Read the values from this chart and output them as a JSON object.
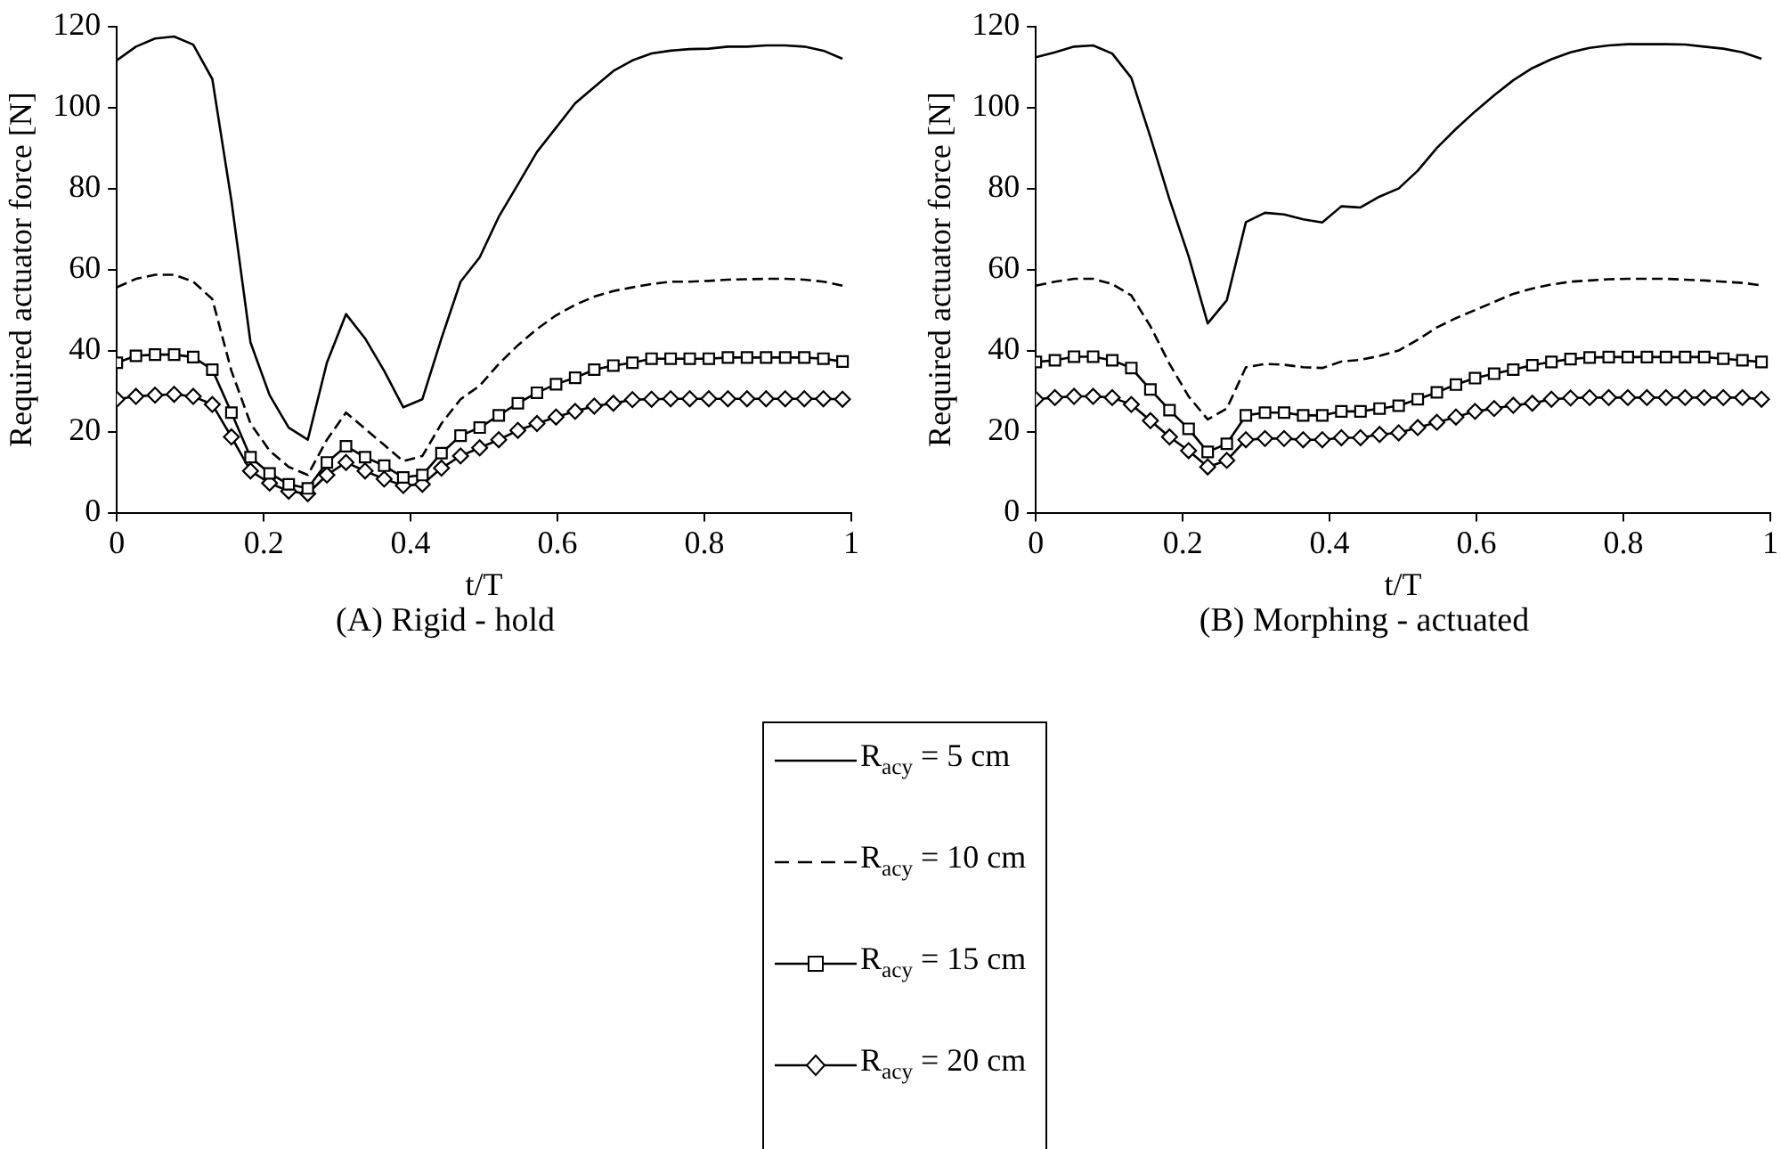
{
  "chart_data": [
    {
      "type": "line",
      "title": "(A) Rigid - hold",
      "xlabel": "t/T",
      "ylabel": "Required actuator force [N]",
      "xlim": [
        0,
        1
      ],
      "ylim": [
        0,
        120
      ],
      "xticks": [
        0,
        0.2,
        0.4,
        0.6,
        0.8,
        1
      ],
      "yticks": [
        0,
        20,
        40,
        60,
        80,
        100,
        120
      ],
      "grid": false,
      "legend": "bottom",
      "x": [
        0,
        0.026,
        0.052,
        0.078,
        0.104,
        0.13,
        0.156,
        0.182,
        0.208,
        0.234,
        0.26,
        0.286,
        0.312,
        0.338,
        0.364,
        0.39,
        0.416,
        0.442,
        0.468,
        0.494,
        0.52,
        0.546,
        0.572,
        0.598,
        0.624,
        0.65,
        0.676,
        0.702,
        0.728,
        0.754,
        0.78,
        0.806,
        0.832,
        0.858,
        0.884,
        0.91,
        0.936,
        0.962,
        0.988
      ],
      "series": [
        {
          "name": "R$_{ac}$$_{y}$ = 5 cm",
          "color": "#000000",
          "marker": "none",
          "line_style": "solid",
          "values": [
            111.6,
            115,
            117,
            117.5,
            115.5,
            107,
            77,
            42,
            29,
            21,
            18,
            37,
            49,
            43,
            35,
            26,
            28,
            43,
            57,
            63,
            73,
            81,
            89,
            95,
            101,
            105,
            109,
            111.6,
            113.3,
            114,
            114.4,
            114.5,
            115,
            115,
            115.3,
            115.3,
            115,
            114,
            112
          ]
        },
        {
          "name": "R$_{ac}$$_{y}$ = 10 cm",
          "color": "#000000",
          "marker": "none",
          "line_style": "dashed",
          "values": [
            55.6,
            57.7,
            58.7,
            58.7,
            57,
            52.7,
            35,
            22,
            15.3,
            11.3,
            9.3,
            18,
            24.7,
            20.7,
            16.7,
            12.7,
            14,
            22,
            28,
            31.3,
            36.7,
            41.3,
            45.3,
            48.7,
            51.3,
            53.3,
            54.7,
            55.6,
            56.4,
            57,
            57,
            57.2,
            57.5,
            57.6,
            57.7,
            57.7,
            57.5,
            57,
            56
          ]
        },
        {
          "name": "R$_{ac}$$_{y}$ = 15 cm",
          "color": "#000000",
          "marker": "square",
          "line_style": "solid",
          "values": [
            37,
            38.7,
            39,
            39,
            38.4,
            35.3,
            24.7,
            13.7,
            9.7,
            7,
            6,
            12.4,
            16.4,
            13.7,
            11.6,
            8.7,
            9.3,
            14.7,
            19,
            21,
            24,
            27,
            29.6,
            31.7,
            33.3,
            35.3,
            36.3,
            37,
            38,
            38,
            38,
            38,
            38.3,
            38.3,
            38.3,
            38.3,
            38.3,
            38,
            37.3
          ]
        },
        {
          "name": "R$_{ac}$$_{y}$ = 20 cm",
          "color": "#000000",
          "marker": "diamond",
          "line_style": "solid",
          "values": [
            28,
            28.7,
            29,
            29.2,
            28.7,
            26.7,
            18.7,
            10.3,
            7.3,
            5.3,
            4.7,
            9.3,
            12.4,
            10.3,
            8.3,
            6.7,
            7,
            11,
            14,
            16,
            18,
            20.3,
            22,
            23.6,
            25,
            26.3,
            27,
            27.9,
            28,
            28.1,
            28.1,
            28.1,
            28.1,
            28.1,
            28.1,
            28.1,
            28.1,
            28.1,
            28
          ]
        }
      ]
    },
    {
      "type": "line",
      "title": "(B) Morphing - actuated",
      "xlabel": "t/T",
      "ylabel": "Required actuator force [N]",
      "xlim": [
        0,
        1
      ],
      "ylim": [
        0,
        120
      ],
      "xticks": [
        0,
        0.2,
        0.4,
        0.6,
        0.8,
        1
      ],
      "yticks": [
        0,
        20,
        40,
        60,
        80,
        100,
        120
      ],
      "grid": false,
      "legend": "bottom",
      "x": [
        0,
        0.026,
        0.052,
        0.078,
        0.104,
        0.13,
        0.156,
        0.182,
        0.208,
        0.234,
        0.26,
        0.286,
        0.312,
        0.338,
        0.364,
        0.39,
        0.416,
        0.442,
        0.468,
        0.494,
        0.52,
        0.546,
        0.572,
        0.598,
        0.624,
        0.65,
        0.676,
        0.702,
        0.728,
        0.754,
        0.78,
        0.806,
        0.832,
        0.858,
        0.884,
        0.91,
        0.936,
        0.962,
        0.988
      ],
      "series": [
        {
          "name": "R$_{ac}$$_{y}$ = 5 cm",
          "color": "#000000",
          "marker": "none",
          "line_style": "solid",
          "values": [
            112.4,
            113.6,
            115,
            115.3,
            113.3,
            107.3,
            92.7,
            77.3,
            63.3,
            46.7,
            52.4,
            71.7,
            74,
            73.6,
            72.4,
            71.6,
            75.6,
            75.3,
            78,
            80,
            84.4,
            90,
            94.7,
            99,
            103,
            106.7,
            109.7,
            111.9,
            113.6,
            114.7,
            115.3,
            115.6,
            115.6,
            115.6,
            115.5,
            115,
            114.5,
            113.6,
            112
          ]
        },
        {
          "name": "R$_{ac}$$_{y}$ = 10 cm",
          "color": "#000000",
          "marker": "none",
          "line_style": "dashed",
          "values": [
            56,
            57,
            57.7,
            57.7,
            56.4,
            53.6,
            46,
            36.7,
            28.7,
            23,
            25.7,
            35.9,
            36.7,
            36.5,
            35.9,
            35.7,
            37.3,
            37.7,
            38.7,
            40,
            42.7,
            45.7,
            48,
            50,
            52,
            54,
            55.3,
            56.3,
            57,
            57.3,
            57.6,
            57.7,
            57.7,
            57.7,
            57.5,
            57.3,
            57,
            56.7,
            56.1
          ]
        },
        {
          "name": "R$_{ac}$$_{y}$ = 15 cm",
          "color": "#000000",
          "marker": "square",
          "line_style": "solid",
          "values": [
            37.2,
            37.6,
            38.5,
            38.5,
            37.6,
            35.7,
            30.4,
            25.3,
            20.7,
            15,
            17,
            24,
            24.7,
            24.7,
            24,
            24,
            25,
            25,
            25.7,
            26.4,
            28,
            29.7,
            31.6,
            33.2,
            34.3,
            35.3,
            36.4,
            37.2,
            37.9,
            38.3,
            38.4,
            38.4,
            38.4,
            38.4,
            38.4,
            38.4,
            38,
            37.6,
            37.2
          ]
        },
        {
          "name": "R$_{ac}$$_{y}$ = 20 cm",
          "color": "#000000",
          "marker": "diamond",
          "line_style": "solid",
          "values": [
            28,
            28.4,
            28.7,
            28.7,
            28.4,
            26.7,
            22.7,
            18.7,
            15.3,
            11.3,
            12.9,
            18,
            18.3,
            18.3,
            18,
            18,
            18.5,
            18.5,
            19.3,
            19.7,
            21,
            22.3,
            23.6,
            25,
            25.7,
            26.5,
            27,
            28,
            28.3,
            28.4,
            28.4,
            28.4,
            28.4,
            28.4,
            28.4,
            28.4,
            28.4,
            28.4,
            28
          ]
        }
      ]
    }
  ]
}
